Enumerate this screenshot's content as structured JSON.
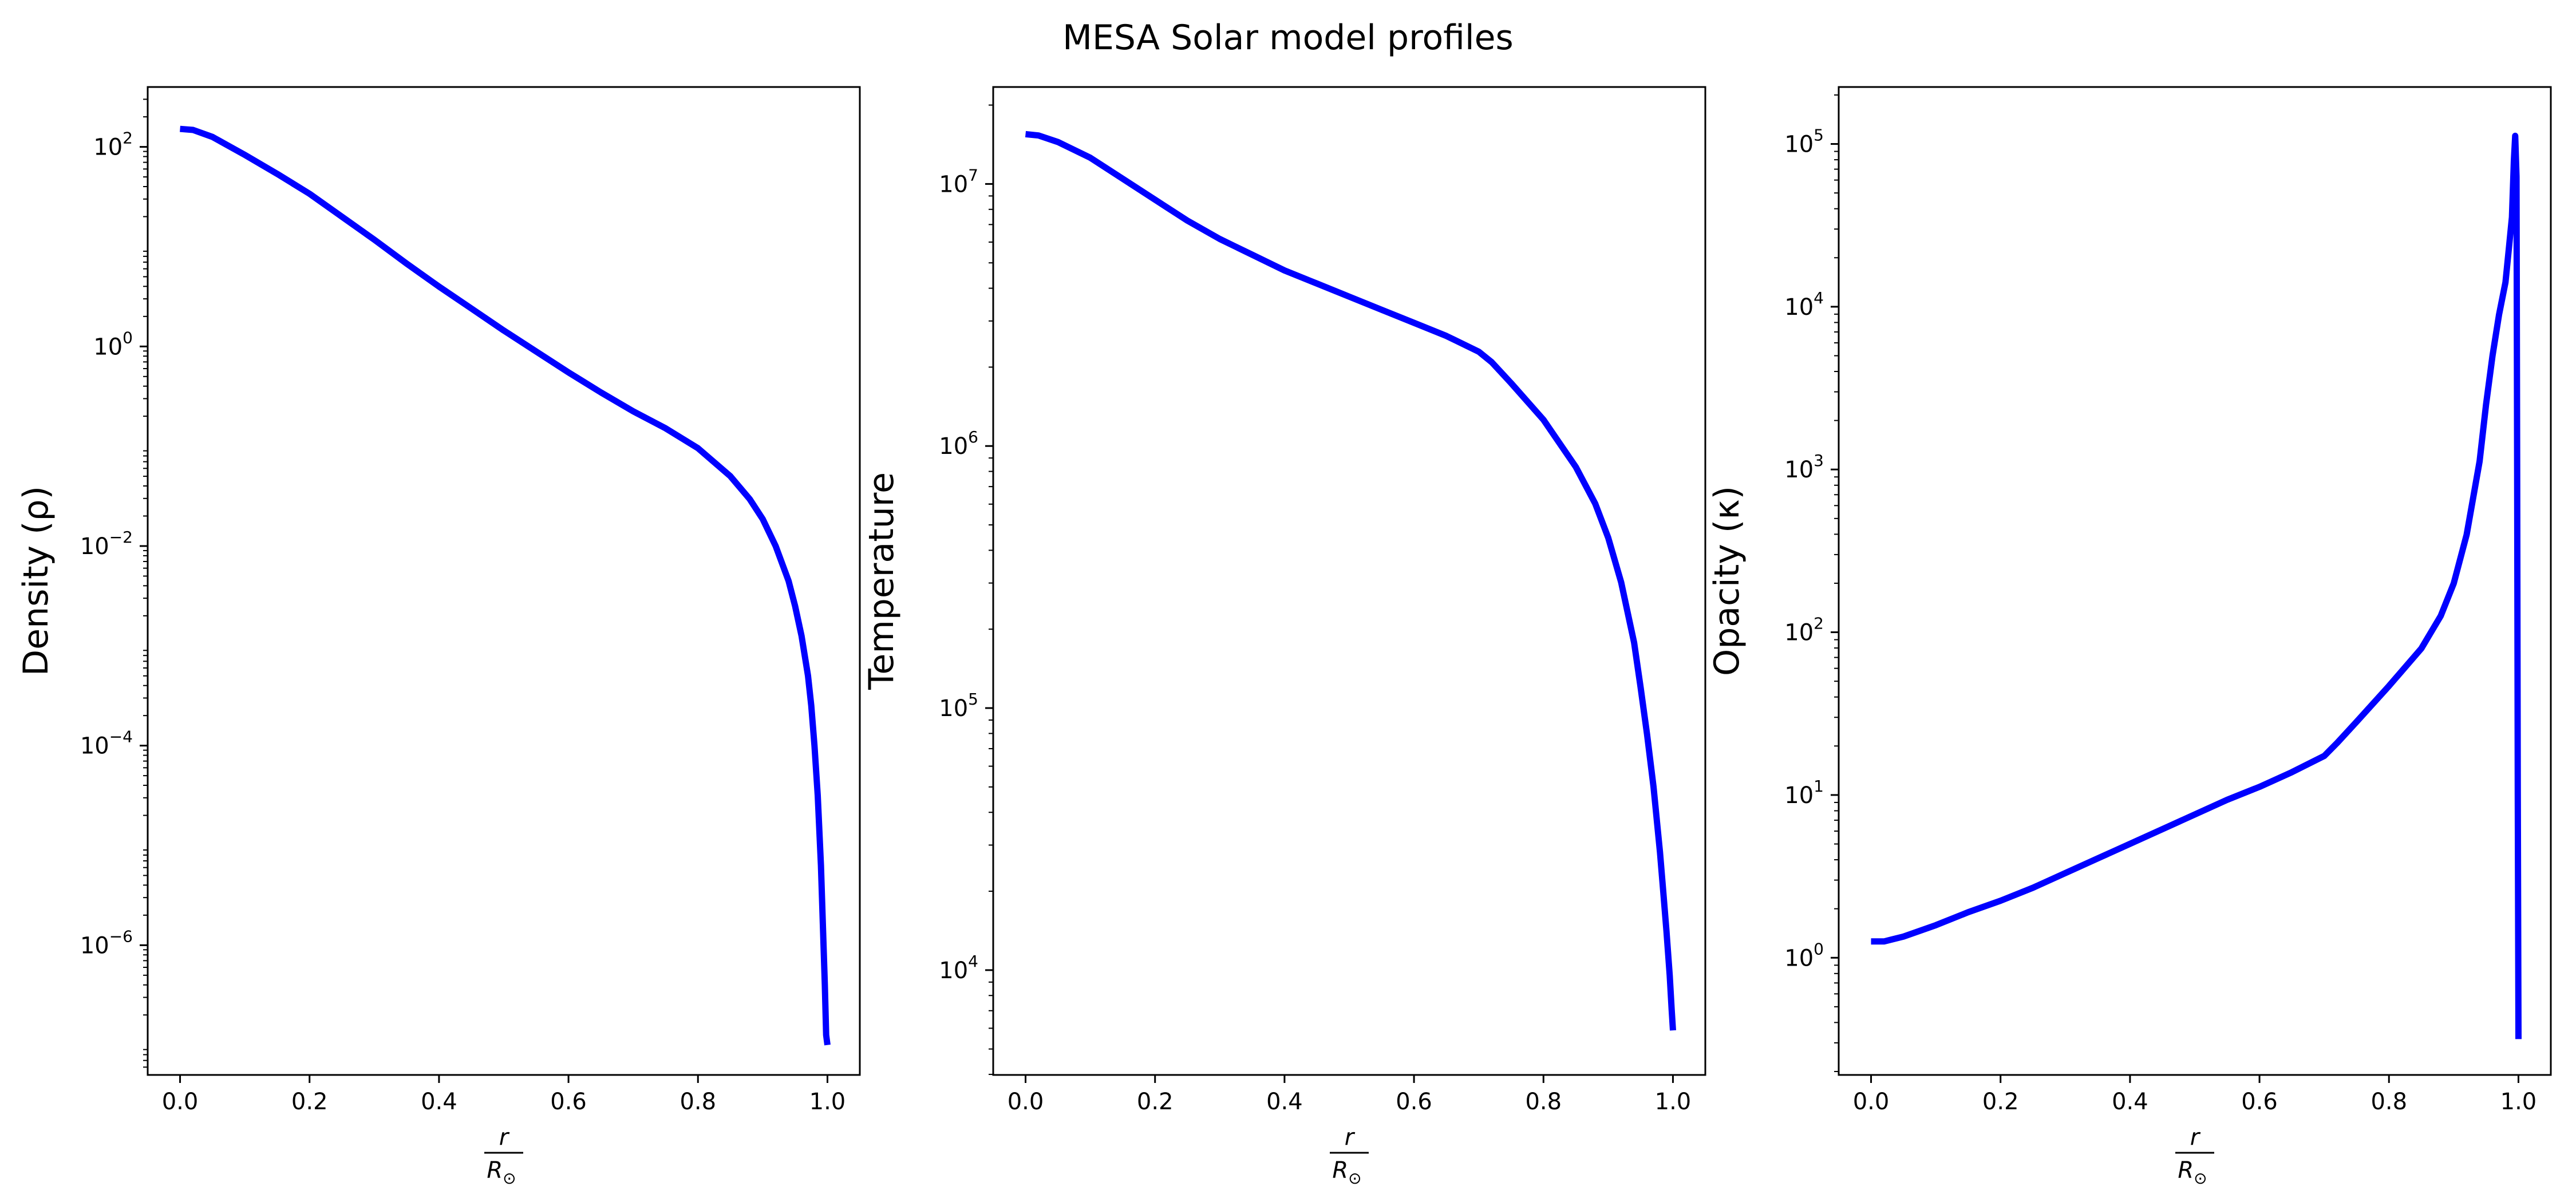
{
  "figure": {
    "suptitle": "MESA Solar model profiles"
  },
  "colors": {
    "line": "#0000ff",
    "axes": "#000000",
    "background": "#ffffff"
  },
  "chart_data": [
    {
      "type": "line",
      "title": "",
      "ylabel": "Density (ρ)",
      "xlabel_num": "r",
      "xlabel_den": "R",
      "xlabel_den_sub": "⊙",
      "xscale": "linear",
      "yscale": "log",
      "xlim": [
        -0.05,
        1.05
      ],
      "ylim_log10": [
        -7.3,
        2.6
      ],
      "xticks": [
        "0.0",
        "0.2",
        "0.4",
        "0.6",
        "0.8",
        "1.0"
      ],
      "yticks": [
        {
          "base": "10",
          "exp": "2"
        },
        {
          "base": "10",
          "exp": "0"
        },
        {
          "base": "10",
          "exp": "−2"
        },
        {
          "base": "10",
          "exp": "−4"
        },
        {
          "base": "10",
          "exp": "−6"
        }
      ],
      "series": [
        {
          "x": [
            0.0,
            0.02,
            0.05,
            0.1,
            0.15,
            0.2,
            0.25,
            0.3,
            0.35,
            0.4,
            0.45,
            0.5,
            0.55,
            0.6,
            0.65,
            0.7,
            0.75,
            0.8,
            0.85,
            0.88,
            0.9,
            0.92,
            0.94,
            0.95,
            0.96,
            0.97,
            0.975,
            0.98,
            0.985,
            0.99,
            0.993,
            0.996,
            0.998,
            1.0
          ],
          "y_log10": [
            2.18,
            2.17,
            2.1,
            1.92,
            1.73,
            1.53,
            1.3,
            1.07,
            0.83,
            0.6,
            0.38,
            0.16,
            -0.05,
            -0.26,
            -0.46,
            -0.65,
            -0.82,
            -1.02,
            -1.3,
            -1.53,
            -1.73,
            -2.0,
            -2.35,
            -2.6,
            -2.9,
            -3.3,
            -3.6,
            -4.0,
            -4.5,
            -5.2,
            -5.8,
            -6.4,
            -6.9,
            -7.0
          ]
        }
      ]
    },
    {
      "type": "line",
      "title": "",
      "ylabel": "Temperature",
      "xlabel_num": "r",
      "xlabel_den": "R",
      "xlabel_den_sub": "⊙",
      "xscale": "linear",
      "yscale": "log",
      "xlim": [
        -0.05,
        1.05
      ],
      "ylim_log10": [
        3.6,
        7.37
      ],
      "xticks": [
        "0.0",
        "0.2",
        "0.4",
        "0.6",
        "0.8",
        "1.0"
      ],
      "yticks": [
        {
          "base": "10",
          "exp": "7"
        },
        {
          "base": "10",
          "exp": "6"
        },
        {
          "base": "10",
          "exp": "5"
        },
        {
          "base": "10",
          "exp": "4"
        }
      ],
      "series": [
        {
          "x": [
            0.0,
            0.02,
            0.05,
            0.1,
            0.15,
            0.2,
            0.25,
            0.3,
            0.35,
            0.4,
            0.45,
            0.5,
            0.55,
            0.6,
            0.65,
            0.7,
            0.72,
            0.75,
            0.8,
            0.85,
            0.88,
            0.9,
            0.92,
            0.94,
            0.95,
            0.96,
            0.97,
            0.98,
            0.985,
            0.99,
            0.995,
            0.998,
            1.0
          ],
          "y_log10": [
            7.19,
            7.185,
            7.16,
            7.1,
            7.02,
            6.94,
            6.86,
            6.79,
            6.73,
            6.67,
            6.62,
            6.57,
            6.52,
            6.47,
            6.42,
            6.36,
            6.32,
            6.24,
            6.1,
            5.92,
            5.78,
            5.65,
            5.48,
            5.25,
            5.08,
            4.9,
            4.7,
            4.45,
            4.3,
            4.15,
            3.98,
            3.85,
            3.77
          ]
        }
      ]
    },
    {
      "type": "line",
      "title": "",
      "ylabel": "Opacity (κ)",
      "xlabel_num": "r",
      "xlabel_den": "R",
      "xlabel_den_sub": "⊙",
      "xscale": "linear",
      "yscale": "log",
      "xlim": [
        -0.05,
        1.05
      ],
      "ylim_log10": [
        -0.72,
        5.35
      ],
      "xticks": [
        "0.0",
        "0.2",
        "0.4",
        "0.6",
        "0.8",
        "1.0"
      ],
      "yticks": [
        {
          "base": "10",
          "exp": "5"
        },
        {
          "base": "10",
          "exp": "4"
        },
        {
          "base": "10",
          "exp": "3"
        },
        {
          "base": "10",
          "exp": "2"
        },
        {
          "base": "10",
          "exp": "1"
        },
        {
          "base": "10",
          "exp": "0"
        }
      ],
      "series": [
        {
          "x": [
            0.0,
            0.02,
            0.05,
            0.1,
            0.15,
            0.2,
            0.25,
            0.3,
            0.35,
            0.4,
            0.45,
            0.5,
            0.55,
            0.6,
            0.65,
            0.7,
            0.72,
            0.75,
            0.8,
            0.85,
            0.88,
            0.9,
            0.92,
            0.94,
            0.95,
            0.96,
            0.97,
            0.98,
            0.985,
            0.99,
            0.993,
            0.995,
            0.997,
            0.998,
            0.999,
            1.0
          ],
          "y_log10": [
            0.1,
            0.1,
            0.13,
            0.2,
            0.28,
            0.35,
            0.43,
            0.52,
            0.61,
            0.7,
            0.79,
            0.88,
            0.97,
            1.05,
            1.14,
            1.24,
            1.32,
            1.45,
            1.67,
            1.9,
            2.1,
            2.3,
            2.6,
            3.05,
            3.4,
            3.7,
            3.95,
            4.15,
            4.35,
            4.55,
            4.9,
            5.05,
            4.8,
            3.0,
            1.0,
            -0.5
          ]
        }
      ]
    }
  ]
}
